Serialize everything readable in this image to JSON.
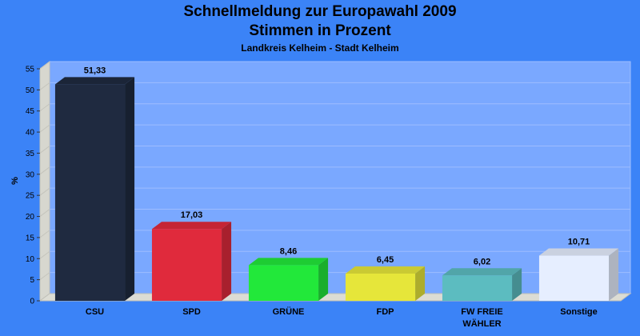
{
  "chart_data": {
    "type": "bar",
    "title": "Schnellmeldung zur Europawahl 2009",
    "title_line2": "Stimmen in Prozent",
    "subtitle": "Landkreis Kelheim - Stadt Kelheim",
    "ylabel": "%",
    "xlabel": "",
    "ylim": [
      0,
      55
    ],
    "yticks": [
      0,
      5,
      10,
      15,
      20,
      25,
      30,
      35,
      40,
      45,
      50,
      55
    ],
    "grid": true,
    "categories": [
      "CSU",
      "SPD",
      "GRÜNE",
      "FDP",
      "FW FREIE WÄHLER",
      "Sonstige"
    ],
    "category_lines": [
      [
        "CSU"
      ],
      [
        "SPD"
      ],
      [
        "GRÜNE"
      ],
      [
        "FDP"
      ],
      [
        "FW FREIE",
        "WÄHLER"
      ],
      [
        "Sonstige"
      ]
    ],
    "values": [
      51.33,
      17.03,
      8.46,
      6.45,
      6.02,
      10.71
    ],
    "value_labels": [
      "51,33",
      "17,03",
      "8,46",
      "6,45",
      "6,02",
      "10,71"
    ],
    "colors": [
      "#1f2a40",
      "#e02a3c",
      "#22e83a",
      "#e6e63a",
      "#5cbcc0",
      "#e6eeff"
    ],
    "background_color": "#3b83f7",
    "plot_color": "#7aa8ff"
  }
}
